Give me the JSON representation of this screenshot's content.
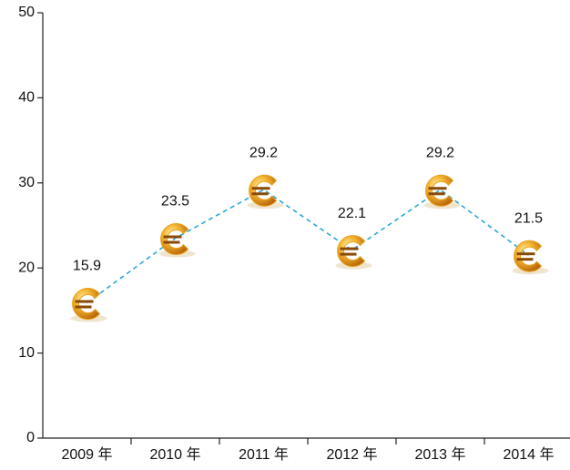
{
  "chart_data": {
    "type": "line",
    "categories": [
      "2009 年",
      "2010 年",
      "2011 年",
      "2012 年",
      "2013 年",
      "2014 年"
    ],
    "values": [
      15.9,
      23.5,
      29.2,
      22.1,
      29.2,
      21.5
    ],
    "color": "#2ba6d6",
    "marker_color": "#e9a21c",
    "line_style": "dashed",
    "ylim": [
      0,
      50
    ],
    "yticks": [
      0,
      10,
      20,
      30,
      40,
      50
    ],
    "grid": false
  }
}
